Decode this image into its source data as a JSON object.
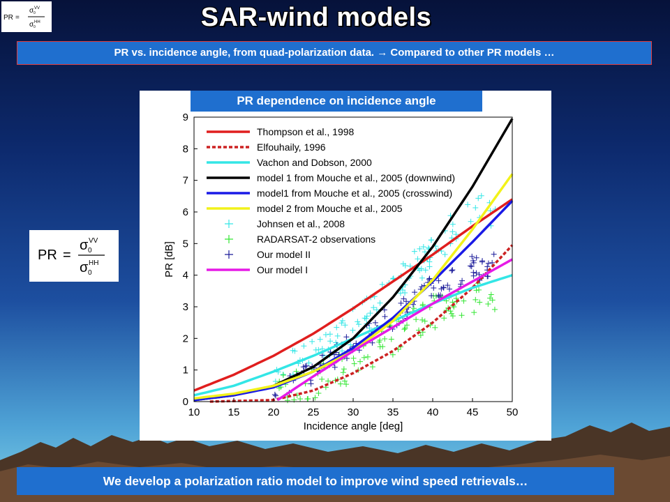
{
  "slide": {
    "title": "SAR-wind models",
    "subtitle_prefix": "PR vs. incidence angle, from quad-polarization data. ",
    "subtitle_arrow": "→",
    "subtitle_suffix": " Compared to other PR models …",
    "bottom_text": "We develop a polarization ratio model to improve wind speed retrievals…"
  },
  "formula": {
    "lhs": "PR",
    "equals": "=",
    "sigma": "σ",
    "sub": "0",
    "num_sup": "VV",
    "den_sup": "HH"
  },
  "colors": {
    "bar": "#1f6fcf",
    "thompson": "#e01e1e",
    "elfouhaily": "#cc2222",
    "vachon": "#33e6e6",
    "mouche_down": "#000000",
    "mouche_cross": "#1a1ae6",
    "mouche2": "#f2f21a",
    "johnsen": "#33e6e6",
    "radarsat": "#33e633",
    "ourII": "#1a1a99",
    "ourI": "#e61ae6"
  },
  "chart_data": {
    "type": "line",
    "title": "PR dependence on incidence angle",
    "xlabel": "Incidence angle [deg]",
    "ylabel": "PR [dB]",
    "xlim": [
      10,
      50
    ],
    "ylim": [
      0,
      9
    ],
    "xticks": [
      "10",
      "15",
      "20",
      "25",
      "30",
      "35",
      "40",
      "45",
      "50"
    ],
    "yticks": [
      "0",
      "1",
      "2",
      "3",
      "4",
      "5",
      "6",
      "7",
      "8",
      "9"
    ],
    "grid": false,
    "legend_position": "top-left",
    "series": [
      {
        "name": "Thompson et al., 1998",
        "style": "solid",
        "color_key": "thompson",
        "x": [
          10,
          15,
          20,
          25,
          30,
          35,
          40,
          45,
          50
        ],
        "y": [
          0.35,
          0.85,
          1.45,
          2.15,
          2.95,
          3.8,
          4.65,
          5.55,
          6.4
        ]
      },
      {
        "name": "Elfouhaily, 1996",
        "style": "dashed",
        "color_key": "elfouhaily",
        "x": [
          12,
          20,
          25,
          30,
          35,
          40,
          45,
          50
        ],
        "y": [
          0.0,
          0.05,
          0.35,
          0.9,
          1.6,
          2.5,
          3.6,
          4.95
        ]
      },
      {
        "name": "Vachon and Dobson, 2000",
        "style": "solid",
        "color_key": "vachon",
        "x": [
          10,
          15,
          20,
          25,
          30,
          35,
          40,
          45,
          50
        ],
        "y": [
          0.2,
          0.5,
          0.95,
          1.45,
          2.0,
          2.55,
          3.1,
          3.6,
          4.0
        ]
      },
      {
        "name": "model 1 from Mouche et al., 2005 (downwind)",
        "style": "solid",
        "color_key": "mouche_down",
        "x": [
          10,
          15,
          20,
          25,
          30,
          35,
          40,
          45,
          50
        ],
        "y": [
          0.05,
          0.2,
          0.5,
          1.1,
          2.0,
          3.3,
          4.9,
          6.8,
          8.95
        ]
      },
      {
        "name": "model1 from Mouche et al., 2005 (crosswind)",
        "style": "solid",
        "color_key": "mouche_cross",
        "x": [
          10,
          15,
          20,
          25,
          30,
          35,
          40,
          45,
          50
        ],
        "y": [
          0.05,
          0.2,
          0.45,
          0.95,
          1.7,
          2.65,
          3.8,
          5.05,
          6.35
        ]
      },
      {
        "name": "model 2 from Mouche et al., 2005",
        "style": "solid",
        "color_key": "mouche2",
        "x": [
          10,
          15,
          20,
          25,
          30,
          35,
          40,
          45,
          50
        ],
        "y": [
          0.1,
          0.25,
          0.5,
          0.95,
          1.6,
          2.55,
          3.85,
          5.45,
          7.2
        ]
      },
      {
        "name": "Johnsen et al., 2008",
        "style": "markers",
        "color_key": "johnsen",
        "x": [
          20,
          25,
          30,
          35,
          40,
          45,
          48
        ],
        "y": [
          0.8,
          1.5,
          2.4,
          3.5,
          4.8,
          6.0,
          6.1
        ]
      },
      {
        "name": "RADARSAT-2 observations",
        "style": "markers",
        "color_key": "radarsat",
        "x": [
          20,
          25,
          30,
          35,
          40,
          45,
          48
        ],
        "y": [
          0.2,
          0.6,
          1.2,
          2.0,
          2.8,
          3.3,
          3.0
        ]
      },
      {
        "name": "Our model II",
        "style": "markers",
        "color_key": "ourII",
        "x": [
          20,
          25,
          30,
          35,
          40,
          45,
          48
        ],
        "y": [
          0.3,
          1.0,
          1.8,
          2.7,
          3.6,
          4.2,
          4.3
        ]
      },
      {
        "name": "Our model I",
        "style": "solid",
        "color_key": "ourI",
        "x": [
          20.5,
          25,
          30,
          35,
          40,
          45,
          50
        ],
        "y": [
          0.05,
          0.8,
          1.6,
          2.35,
          3.1,
          3.8,
          4.5
        ]
      }
    ]
  }
}
